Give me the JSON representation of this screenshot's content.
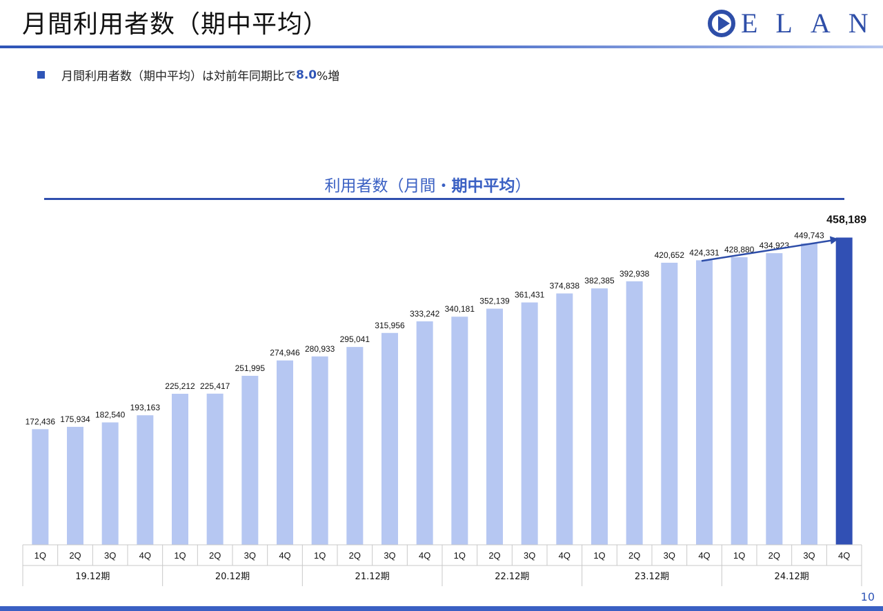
{
  "header": {
    "title": "月間利用者数（期中平均）",
    "logo_text": "ELAN"
  },
  "bullet": {
    "pre": "月間利用者数（期中平均）は対前年同期比で",
    "highlight": "8.0",
    "post": "%増"
  },
  "chart_title": {
    "normal": "利用者数（月間・",
    "bold": "期中平均",
    "close": "）"
  },
  "page_number": "10",
  "colors": {
    "bar": "#b6c7f2",
    "bar_highlight": "#3150b4",
    "accent": "#2f55b7",
    "arrow": "#2d4da8"
  },
  "chart_data": {
    "type": "bar",
    "title": "利用者数（月間・期中平均）",
    "xlabel": "",
    "ylabel": "",
    "ylim": [
      0,
      470000
    ],
    "categories": [
      "1Q",
      "2Q",
      "3Q",
      "4Q",
      "1Q",
      "2Q",
      "3Q",
      "4Q",
      "1Q",
      "2Q",
      "3Q",
      "4Q",
      "1Q",
      "2Q",
      "3Q",
      "4Q",
      "1Q",
      "2Q",
      "3Q",
      "4Q",
      "1Q",
      "2Q",
      "3Q",
      "4Q"
    ],
    "labels": [
      "172,436",
      "175,934",
      "182,540",
      "193,163",
      "225,212",
      "225,417",
      "251,995",
      "274,946",
      "280,933",
      "295,041",
      "315,956",
      "333,242",
      "340,181",
      "352,139",
      "361,431",
      "374,838",
      "382,385",
      "392,938",
      "420,652",
      "424,331",
      "428,880",
      "434,923",
      "449,743",
      "458,189"
    ],
    "values": [
      172436,
      175934,
      182540,
      193163,
      225212,
      225417,
      251995,
      274946,
      280933,
      295041,
      315956,
      333242,
      340181,
      352139,
      361431,
      374838,
      382385,
      392938,
      420652,
      424331,
      428880,
      434923,
      449743,
      458189
    ],
    "periods": [
      "19.12期",
      "20.12期",
      "21.12期",
      "22.12期",
      "23.12期",
      "24.12期"
    ],
    "highlight_index": 23,
    "trend_arrow": {
      "from_index": 19,
      "to_index": 23
    }
  }
}
